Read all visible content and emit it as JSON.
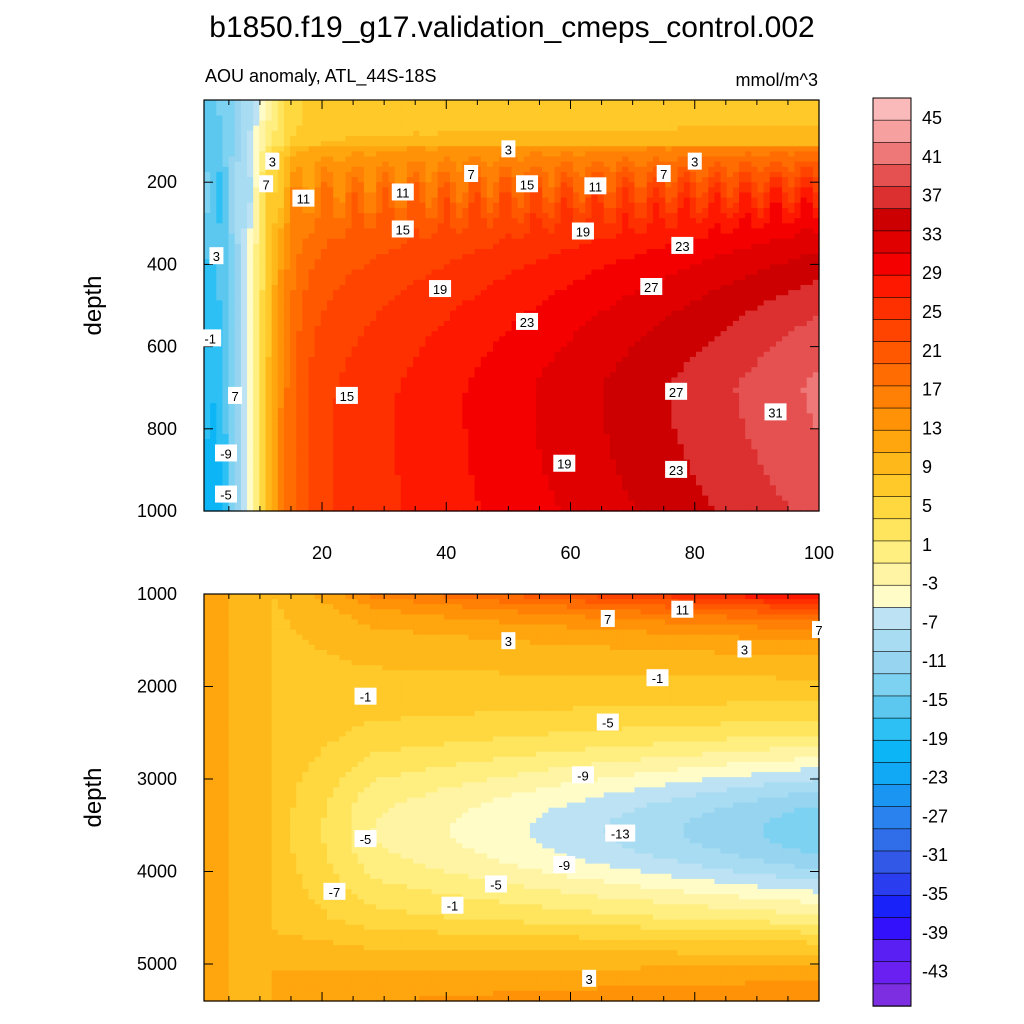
{
  "chart_data": {
    "type": "heatmap",
    "title": "b1850.f19_g17.validation_cmeps_control.002",
    "subtitle_left": "AOU anomaly, ATL_44S-18S",
    "subtitle_right": "mmol/m^3",
    "x_ticks": [
      20,
      40,
      60,
      80,
      100
    ],
    "x_range": [
      1,
      100
    ],
    "colorbar": {
      "labels": [
        "45",
        "41",
        "37",
        "33",
        "29",
        "25",
        "21",
        "17",
        "13",
        "9",
        "5",
        "1",
        "-3",
        "-7",
        "-11",
        "-15",
        "-19",
        "-23",
        "-27",
        "-31",
        "-35",
        "-39",
        "-43"
      ],
      "levels_from": -45,
      "levels_to": 47,
      "step": 2,
      "colors": [
        "#7d2ee0",
        "#6a20f0",
        "#5a1ff2",
        "#3311fa",
        "#1a22fa",
        "#2a3ef0",
        "#3258e8",
        "#2f6ee8",
        "#2a82ee",
        "#1b95f2",
        "#11a8f5",
        "#0cb5f6",
        "#2cc0f4",
        "#5cc8f0",
        "#7dd2f2",
        "#96d4f0",
        "#a8dcf2",
        "#bde2f3",
        "#fffcc8",
        "#fff4a3",
        "#ffee80",
        "#ffe45e",
        "#ffd840",
        "#ffc92a",
        "#ffb81a",
        "#ffa50e",
        "#ff9206",
        "#ff8004",
        "#ff6c02",
        "#ff5801",
        "#ff4400",
        "#ff3000",
        "#ff1800",
        "#f40000",
        "#e00000",
        "#cc0000",
        "#dc3030",
        "#e55050",
        "#ee7878",
        "#f6a0a0",
        "#fbbaba"
      ]
    },
    "panels": [
      {
        "id": "upper",
        "ylabel": "depth",
        "y_range": [
          0,
          1000
        ],
        "y_ticks": [
          200,
          400,
          600,
          800,
          1000
        ],
        "show_x_labels": true,
        "contour_labels": [
          {
            "text": "3",
            "x": 12,
            "y": 150
          },
          {
            "text": "3",
            "x": 50,
            "y": 120
          },
          {
            "text": "3",
            "x": 80,
            "y": 150
          },
          {
            "text": "7",
            "x": 11,
            "y": 205
          },
          {
            "text": "7",
            "x": 44,
            "y": 180
          },
          {
            "text": "7",
            "x": 75,
            "y": 180
          },
          {
            "text": "11",
            "x": 17,
            "y": 240
          },
          {
            "text": "11",
            "x": 33,
            "y": 225
          },
          {
            "text": "11",
            "x": 64,
            "y": 210
          },
          {
            "text": "15",
            "x": 33,
            "y": 315
          },
          {
            "text": "15",
            "x": 53,
            "y": 205
          },
          {
            "text": "15",
            "x": 24,
            "y": 720
          },
          {
            "text": "19",
            "x": 39,
            "y": 460
          },
          {
            "text": "19",
            "x": 62,
            "y": 320
          },
          {
            "text": "19",
            "x": 59,
            "y": 885
          },
          {
            "text": "23",
            "x": 53,
            "y": 540
          },
          {
            "text": "23",
            "x": 78,
            "y": 355
          },
          {
            "text": "23",
            "x": 77,
            "y": 900
          },
          {
            "text": "27",
            "x": 73,
            "y": 455
          },
          {
            "text": "27",
            "x": 77,
            "y": 710
          },
          {
            "text": "31",
            "x": 93,
            "y": 760
          },
          {
            "text": "3",
            "x": 3,
            "y": 380
          },
          {
            "text": "-1",
            "x": 2,
            "y": 580
          },
          {
            "text": "7",
            "x": 6,
            "y": 720
          },
          {
            "text": "-9",
            "x": -1,
            "y": 860
          },
          {
            "text": "-5",
            "x": -1,
            "y": 960
          }
        ]
      },
      {
        "id": "lower",
        "ylabel": "depth",
        "y_range": [
          1000,
          5400
        ],
        "y_ticks": [
          1000,
          2000,
          3000,
          4000,
          5000
        ],
        "show_x_labels": false,
        "contour_labels": [
          {
            "text": "11",
            "x": 78,
            "y": 1170
          },
          {
            "text": "7",
            "x": 66,
            "y": 1270
          },
          {
            "text": "7",
            "x": 100,
            "y": 1390
          },
          {
            "text": "3",
            "x": 50,
            "y": 1510
          },
          {
            "text": "3",
            "x": 88,
            "y": 1600
          },
          {
            "text": "-1",
            "x": 74,
            "y": 1910
          },
          {
            "text": "-1",
            "x": 27,
            "y": 2110
          },
          {
            "text": "-5",
            "x": 66,
            "y": 2390
          },
          {
            "text": "-9",
            "x": 62,
            "y": 2960
          },
          {
            "text": "-13",
            "x": 68,
            "y": 3590
          },
          {
            "text": "-5",
            "x": 27,
            "y": 3650
          },
          {
            "text": "-9",
            "x": 59,
            "y": 3930
          },
          {
            "text": "-5",
            "x": 48,
            "y": 4140
          },
          {
            "text": "-1",
            "x": 41,
            "y": 4370
          },
          {
            "text": "-7",
            "x": 22,
            "y": 4220
          },
          {
            "text": "3",
            "x": 63,
            "y": 5160
          }
        ]
      }
    ]
  }
}
